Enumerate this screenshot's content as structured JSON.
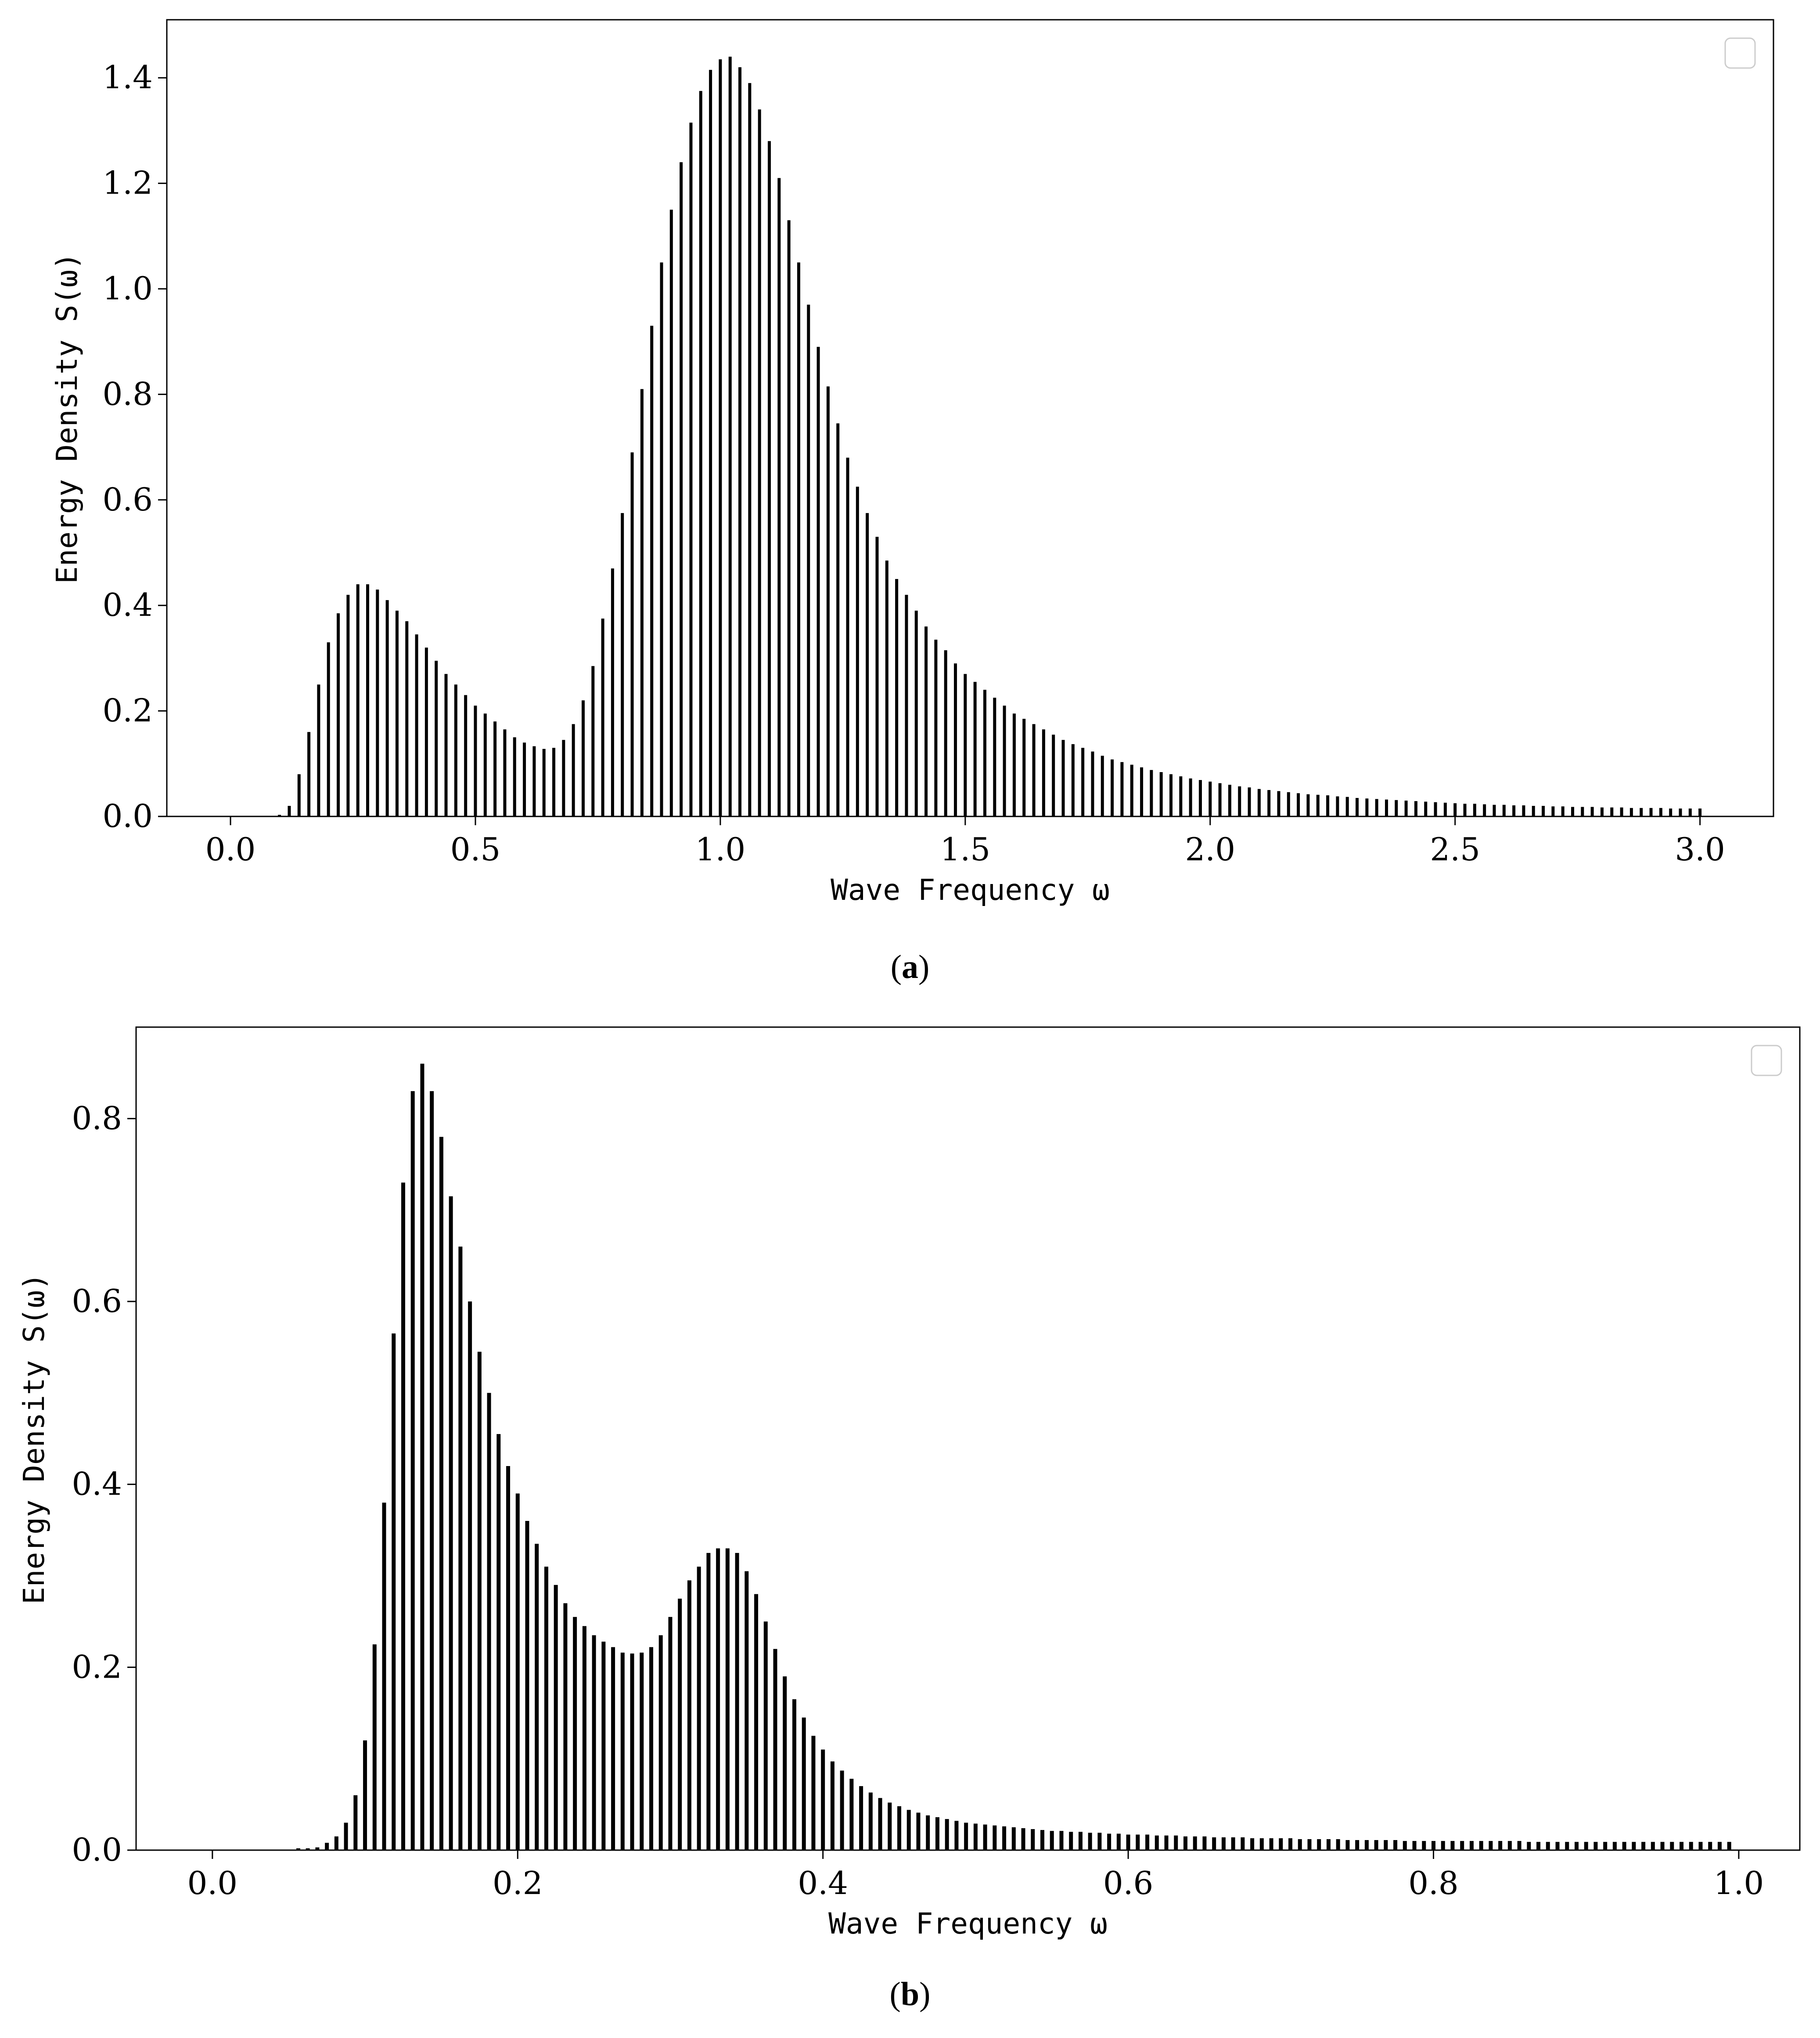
{
  "chart_data": [
    {
      "type": "bar",
      "panel_label": "a",
      "xlabel": "Wave Frequency ω",
      "ylabel": "Energy Density S(ω)",
      "xlim": [
        -0.13,
        3.15
      ],
      "ylim": [
        0,
        1.51
      ],
      "xticks": [
        0.0,
        0.5,
        1.0,
        1.5,
        2.0,
        2.5,
        3.0
      ],
      "yticks": [
        0.0,
        0.2,
        0.4,
        0.6,
        0.8,
        1.0,
        1.2,
        1.4
      ],
      "legend": "top-right",
      "grid": false,
      "bar_color": "#000000",
      "x_start": 0.0,
      "x_step": 0.02,
      "values": [
        0,
        0,
        0,
        0,
        0,
        0.003,
        0.02,
        0.08,
        0.16,
        0.25,
        0.33,
        0.385,
        0.42,
        0.44,
        0.44,
        0.43,
        0.41,
        0.39,
        0.37,
        0.345,
        0.32,
        0.295,
        0.27,
        0.25,
        0.23,
        0.21,
        0.195,
        0.18,
        0.165,
        0.15,
        0.14,
        0.133,
        0.128,
        0.13,
        0.145,
        0.175,
        0.22,
        0.285,
        0.375,
        0.47,
        0.575,
        0.69,
        0.81,
        0.93,
        1.05,
        1.15,
        1.24,
        1.315,
        1.375,
        1.415,
        1.435,
        1.44,
        1.42,
        1.39,
        1.34,
        1.28,
        1.21,
        1.13,
        1.05,
        0.97,
        0.89,
        0.815,
        0.745,
        0.68,
        0.625,
        0.575,
        0.53,
        0.485,
        0.45,
        0.42,
        0.39,
        0.36,
        0.335,
        0.315,
        0.29,
        0.27,
        0.255,
        0.24,
        0.225,
        0.21,
        0.195,
        0.185,
        0.175,
        0.165,
        0.155,
        0.145,
        0.137,
        0.13,
        0.123,
        0.115,
        0.108,
        0.103,
        0.098,
        0.093,
        0.088,
        0.084,
        0.08,
        0.076,
        0.072,
        0.069,
        0.066,
        0.063,
        0.06,
        0.057,
        0.055,
        0.052,
        0.05,
        0.048,
        0.046,
        0.044,
        0.042,
        0.041,
        0.04,
        0.038,
        0.037,
        0.035,
        0.034,
        0.033,
        0.032,
        0.031,
        0.03,
        0.029,
        0.028,
        0.027,
        0.026,
        0.025,
        0.024,
        0.024,
        0.023,
        0.022,
        0.022,
        0.021,
        0.021,
        0.02,
        0.02,
        0.019,
        0.019,
        0.018,
        0.018,
        0.018,
        0.017,
        0.017,
        0.017,
        0.016,
        0.016,
        0.016,
        0.016,
        0.015,
        0.015,
        0.015,
        0.015
      ]
    },
    {
      "type": "bar",
      "panel_label": "b",
      "xlabel": "Wave Frequency ω",
      "ylabel": "Energy Density S(ω)",
      "xlim": [
        -0.05,
        1.04
      ],
      "ylim": [
        0,
        0.9
      ],
      "xticks": [
        0.0,
        0.2,
        0.4,
        0.6,
        0.8,
        1.0
      ],
      "yticks": [
        0.0,
        0.2,
        0.4,
        0.6,
        0.8
      ],
      "legend": "top-right",
      "grid": false,
      "bar_color": "#000000",
      "x_start": 0.0,
      "x_step": 0.00625,
      "values": [
        0,
        0,
        0,
        0,
        0,
        0,
        0,
        0,
        0,
        0.002,
        0.002,
        0.003,
        0.008,
        0.015,
        0.03,
        0.06,
        0.12,
        0.225,
        0.38,
        0.565,
        0.73,
        0.83,
        0.86,
        0.83,
        0.78,
        0.715,
        0.66,
        0.6,
        0.545,
        0.5,
        0.455,
        0.42,
        0.39,
        0.36,
        0.335,
        0.31,
        0.29,
        0.27,
        0.255,
        0.245,
        0.235,
        0.228,
        0.222,
        0.216,
        0.215,
        0.216,
        0.222,
        0.235,
        0.255,
        0.275,
        0.295,
        0.31,
        0.325,
        0.33,
        0.33,
        0.325,
        0.305,
        0.28,
        0.25,
        0.22,
        0.19,
        0.165,
        0.145,
        0.125,
        0.11,
        0.097,
        0.087,
        0.078,
        0.07,
        0.063,
        0.057,
        0.052,
        0.048,
        0.044,
        0.041,
        0.038,
        0.036,
        0.034,
        0.032,
        0.03,
        0.029,
        0.028,
        0.027,
        0.026,
        0.025,
        0.024,
        0.023,
        0.022,
        0.021,
        0.021,
        0.02,
        0.02,
        0.019,
        0.019,
        0.018,
        0.018,
        0.017,
        0.017,
        0.017,
        0.016,
        0.016,
        0.016,
        0.015,
        0.015,
        0.015,
        0.014,
        0.014,
        0.014,
        0.014,
        0.013,
        0.013,
        0.013,
        0.013,
        0.013,
        0.012,
        0.012,
        0.012,
        0.012,
        0.012,
        0.011,
        0.011,
        0.011,
        0.011,
        0.011,
        0.011,
        0.01,
        0.01,
        0.01,
        0.01,
        0.01,
        0.01,
        0.01,
        0.01,
        0.01,
        0.01,
        0.01,
        0.01,
        0.01,
        0.009,
        0.009,
        0.009,
        0.009,
        0.009,
        0.009,
        0.009,
        0.009,
        0.009,
        0.009,
        0.009,
        0.009,
        0.009,
        0.009,
        0.009,
        0.009,
        0.009,
        0.009,
        0.009,
        0.009,
        0.009,
        0.009
      ]
    }
  ]
}
